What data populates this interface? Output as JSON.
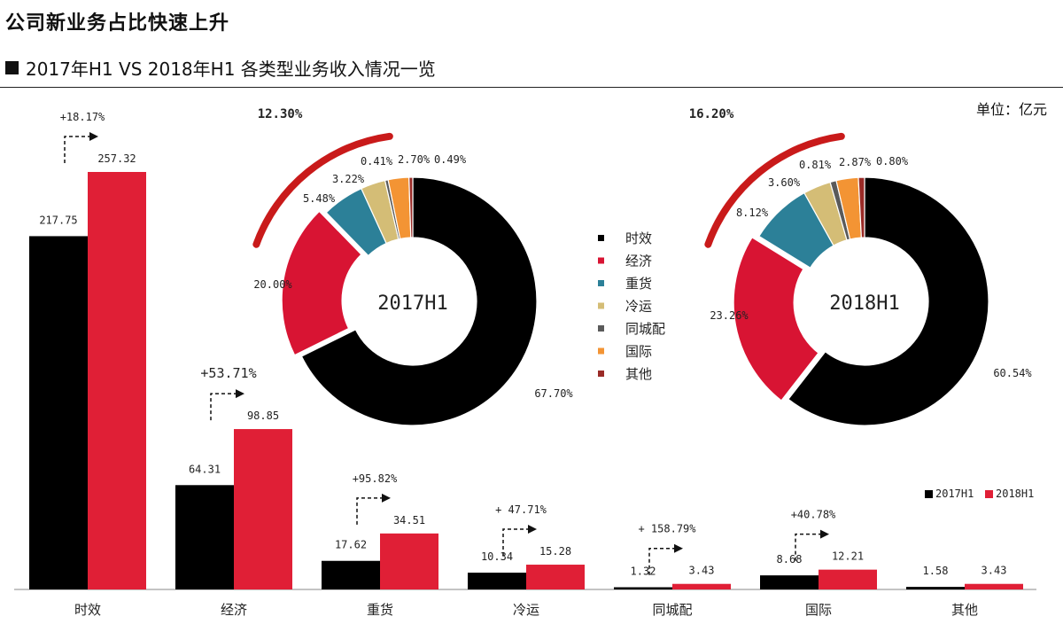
{
  "header": {
    "title": "公司新业务占比快速上升",
    "subtitle": "2017年H1 VS 2018年H1 各类型业务收入情况一览",
    "unit": "单位：亿元"
  },
  "colors": {
    "h2017": "#000000",
    "h2018": "#e01f36",
    "arc": "#c91a1a",
    "segments": [
      "#000000",
      "#d81433",
      "#2c8098",
      "#d4bd76",
      "#5a5a5a",
      "#f39434",
      "#9a2b27"
    ]
  },
  "chart_data": [
    {
      "type": "bar",
      "categories": [
        "时效",
        "经济",
        "重货",
        "冷运",
        "同城配",
        "国际",
        "其他"
      ],
      "series": [
        {
          "name": "2017H1",
          "values": [
            217.75,
            64.31,
            17.62,
            10.34,
            1.32,
            8.68,
            1.58
          ],
          "labels": [
            "217.75",
            "64.31",
            "17.62",
            "10.34",
            "1.32",
            "8.68",
            "1.58"
          ]
        },
        {
          "name": "2018H1",
          "values": [
            257.32,
            98.85,
            34.51,
            15.28,
            3.43,
            12.21,
            3.43
          ],
          "labels": [
            "257.32",
            "98.85",
            "34.51",
            "15.28",
            "3.43",
            "12.21",
            "3.43"
          ]
        }
      ],
      "growth_labels": [
        "+18.17%",
        "+53.71%",
        "+95.82%",
        "+ 47.71%",
        "+ 158.79%",
        "+40.78%",
        ""
      ],
      "ylim": [
        0,
        257.32
      ],
      "legend": [
        "2017H1",
        "2018H1"
      ],
      "legend_position": "right"
    },
    {
      "type": "pie",
      "title": "2017H1",
      "labels": [
        "时效",
        "经济",
        "重货",
        "冷运",
        "同城配",
        "国际",
        "其他"
      ],
      "values": [
        67.7,
        20.0,
        5.48,
        3.22,
        0.41,
        2.7,
        0.49
      ],
      "value_labels": [
        "67.70%",
        "20.00%",
        "5.48%",
        "3.22%",
        "0.41%",
        "2.70%",
        "0.49%"
      ],
      "new_business_share": "12.30%"
    },
    {
      "type": "pie",
      "title": "2018H1",
      "labels": [
        "时效",
        "经济",
        "重货",
        "冷运",
        "同城配",
        "国际",
        "其他"
      ],
      "values": [
        60.54,
        23.26,
        8.12,
        3.6,
        0.81,
        2.87,
        0.8
      ],
      "value_labels": [
        "60.54%",
        "23.26%",
        "8.12%",
        "3.60%",
        "0.81%",
        "2.87%",
        "0.80%"
      ],
      "new_business_share": "16.20%"
    }
  ],
  "legend": [
    "时效",
    "经济",
    "重货",
    "冷运",
    "同城配",
    "国际",
    "其他"
  ]
}
